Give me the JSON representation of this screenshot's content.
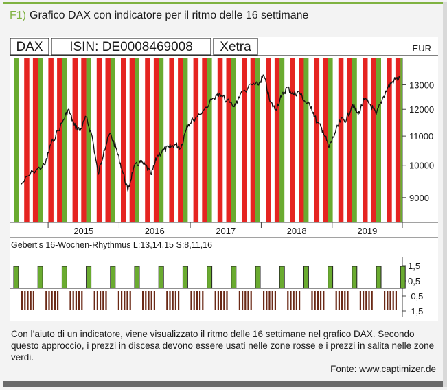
{
  "header": {
    "tag": "F1)",
    "title": "Grafico DAX con indicatore per il ritmo delle 16 settimane"
  },
  "caption": "Con l’aiuto di un indicatore, viene visualizzato il ritmo delle 16 settimane nel grafico DAX. Secondo questo approccio, i prezzi in discesa devono essere usati nelle zone rosse e i prezzi in salita nelle zone verdi.",
  "source": "Fonte: www.captimizer.de",
  "colors": {
    "green": "#6aab30",
    "red": "#e52421",
    "line": "#111111",
    "accent": "#7fb241"
  },
  "chart_data": [
    {
      "type": "line",
      "title": "",
      "header_boxes": [
        "DAX",
        "ISIN: DE0008469008",
        "Xetra"
      ],
      "unit": "EUR",
      "x_tick_labels": [
        "2015",
        "2016",
        "2017",
        "2018",
        "2019"
      ],
      "y_ticks": [
        "13000",
        "12000",
        "11000",
        "10000",
        "9000"
      ],
      "ylim": [
        8300,
        14200
      ],
      "scale": "log",
      "xlim": [
        "2014-07",
        "2019-12"
      ],
      "background_bands": "alternating green (rising) and red (falling) vertical zones",
      "series": [
        {
          "x": [
            "2014-08",
            "2014-10",
            "2014-12",
            "2015-01",
            "2015-03",
            "2015-04",
            "2015-05",
            "2015-06",
            "2015-07",
            "2015-08",
            "2015-09",
            "2015-10",
            "2015-11",
            "2015-12",
            "2016-01",
            "2016-02",
            "2016-03",
            "2016-04",
            "2016-05",
            "2016-06",
            "2016-07",
            "2016-08",
            "2016-09",
            "2016-10",
            "2016-11",
            "2016-12",
            "2017-01",
            "2017-03",
            "2017-05",
            "2017-06",
            "2017-08",
            "2017-09",
            "2017-11",
            "2017-12",
            "2018-01",
            "2018-02",
            "2018-03",
            "2018-04",
            "2018-05",
            "2018-06",
            "2018-07",
            "2018-08",
            "2018-09",
            "2018-10",
            "2018-11",
            "2018-12",
            "2019-01",
            "2019-02",
            "2019-03",
            "2019-04",
            "2019-05",
            "2019-06",
            "2019-07",
            "2019-08",
            "2019-09",
            "2019-10",
            "2019-11",
            "2019-12"
          ],
          "values": [
            9400,
            9800,
            10000,
            10700,
            11500,
            12000,
            11400,
            11200,
            11700,
            11000,
            9700,
            10500,
            11100,
            10600,
            9900,
            9200,
            9900,
            10100,
            10000,
            9700,
            10300,
            10500,
            10600,
            10700,
            10600,
            11400,
            11600,
            12000,
            12600,
            12500,
            12100,
            12600,
            13000,
            13000,
            13400,
            12300,
            12000,
            12500,
            12900,
            12600,
            12700,
            12300,
            12100,
            11500,
            11200,
            10600,
            11100,
            11600,
            11600,
            12200,
            11800,
            12400,
            12200,
            11800,
            12400,
            12900,
            13200,
            13300
          ]
        }
      ]
    },
    {
      "type": "bar",
      "title": "Gebert's 16-Wochen-Rhythmus L:13,14,15 S:8,11,16",
      "y_ticks": [
        "1,5",
        "0,5",
        "-0,5",
        "-1,5"
      ],
      "ylim": [
        -1.5,
        1.5
      ],
      "positive_value": 1,
      "negative_value": -1,
      "pattern": "green +1 bar once per 16-week cycle, brown -1 bars in between"
    }
  ]
}
